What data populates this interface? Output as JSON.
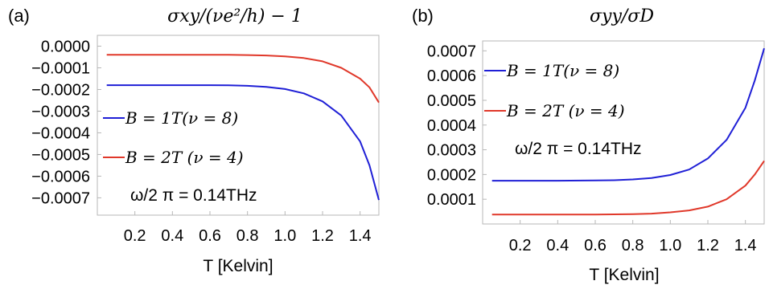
{
  "chart_data": [
    {
      "panel": "(a)",
      "type": "line",
      "title": "σxy/(νe²/h) − 1",
      "xlabel": "T [Kelvin]",
      "ylabel": "",
      "xlim": [
        0.0,
        1.5
      ],
      "ylim": [
        -0.00078,
        5e-05
      ],
      "xticks": [
        "0.2",
        "0.4",
        "0.6",
        "0.8",
        "1.0",
        "1.2",
        "1.4"
      ],
      "yticks": [
        "0.0000",
        "−0.0001",
        "−0.0002",
        "−0.0003",
        "−0.0004",
        "−0.0005",
        "−0.0006",
        "−0.0007"
      ],
      "legend": [
        "B = 1T(ν = 8)",
        "B = 2T (ν = 4)"
      ],
      "annotation": "ω/2 π = 0.14THz",
      "series": [
        {
          "name": "B = 1T(ν = 8)",
          "color": "#1f1fd6",
          "x": [
            0.05,
            0.2,
            0.4,
            0.6,
            0.7,
            0.8,
            0.9,
            1.0,
            1.1,
            1.2,
            1.3,
            1.4,
            1.45,
            1.5
          ],
          "y": [
            -0.00018,
            -0.00018,
            -0.00018,
            -0.00018,
            -0.000181,
            -0.000183,
            -0.000188,
            -0.000198,
            -0.000218,
            -0.000255,
            -0.00032,
            -0.00044,
            -0.00055,
            -0.00071
          ]
        },
        {
          "name": "B = 2T (ν = 4)",
          "color": "#e0382a",
          "x": [
            0.05,
            0.2,
            0.4,
            0.6,
            0.7,
            0.8,
            0.9,
            1.0,
            1.1,
            1.2,
            1.3,
            1.4,
            1.45,
            1.5
          ],
          "y": [
            -4e-05,
            -4e-05,
            -4e-05,
            -4e-05,
            -4e-05,
            -4.1e-05,
            -4.3e-05,
            -4.7e-05,
            -5.5e-05,
            -7e-05,
            -0.0001,
            -0.00015,
            -0.00019,
            -0.00026
          ]
        }
      ]
    },
    {
      "panel": "(b)",
      "type": "line",
      "title": "σyy/σD",
      "xlabel": "T [Kelvin]",
      "ylabel": "",
      "xlim": [
        0.0,
        1.5
      ],
      "ylim": [
        0.0,
        0.00074
      ],
      "xticks": [
        "0.2",
        "0.4",
        "0.6",
        "0.8",
        "1.0",
        "1.2",
        "1.4"
      ],
      "yticks": [
        "0.0001",
        "0.0002",
        "0.0003",
        "0.0004",
        "0.0005",
        "0.0006",
        "0.0007"
      ],
      "legend": [
        "B = 1T(ν = 8)",
        "B = 2T (ν = 4)"
      ],
      "annotation": "ω/2 π = 0.14THz",
      "series": [
        {
          "name": "B = 1T(ν = 8)",
          "color": "#1f1fd6",
          "x": [
            0.05,
            0.2,
            0.4,
            0.6,
            0.7,
            0.8,
            0.9,
            1.0,
            1.1,
            1.2,
            1.3,
            1.4,
            1.45,
            1.5
          ],
          "y": [
            0.000175,
            0.000175,
            0.000175,
            0.000176,
            0.000177,
            0.00018,
            0.000186,
            0.000198,
            0.00022,
            0.000265,
            0.00034,
            0.00047,
            0.00058,
            0.00071
          ]
        },
        {
          "name": "B = 2T (ν = 4)",
          "color": "#e0382a",
          "x": [
            0.05,
            0.2,
            0.4,
            0.6,
            0.7,
            0.8,
            0.9,
            1.0,
            1.1,
            1.2,
            1.3,
            1.4,
            1.45,
            1.5
          ],
          "y": [
            3.8e-05,
            3.8e-05,
            3.8e-05,
            3.8e-05,
            3.9e-05,
            4e-05,
            4.2e-05,
            4.7e-05,
            5.5e-05,
            7e-05,
            0.0001,
            0.000155,
            0.0002,
            0.000255
          ]
        }
      ]
    }
  ]
}
